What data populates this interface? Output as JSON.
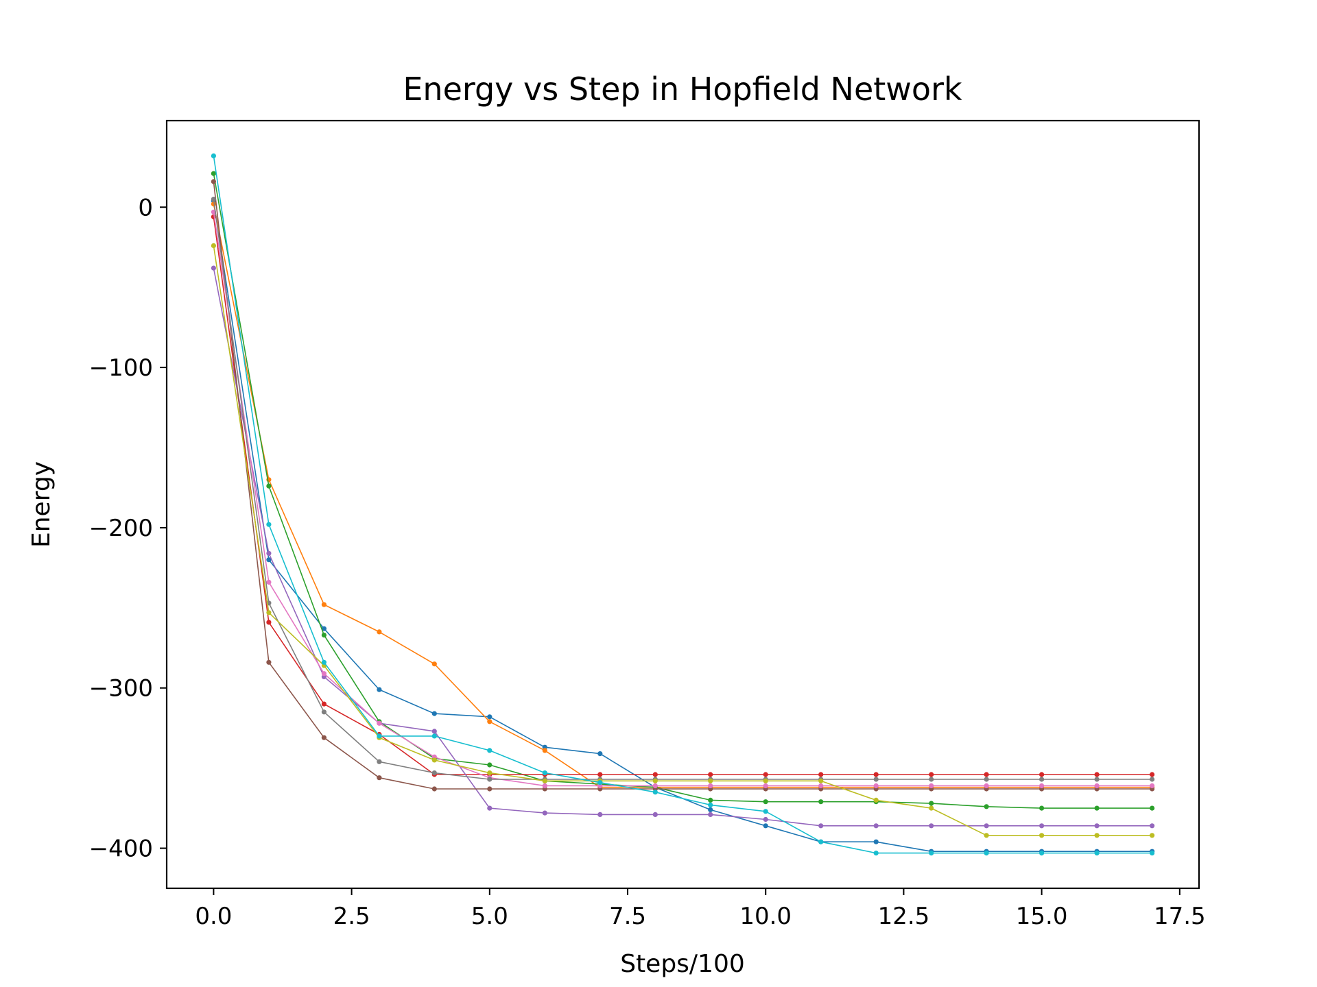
{
  "chart_data": {
    "type": "line",
    "title": "Energy vs Step in Hopfield Network",
    "xlabel": "Steps/100",
    "ylabel": "Energy",
    "xlim": [
      -0.85,
      17.85
    ],
    "ylim": [
      -425,
      54
    ],
    "xticks": [
      0.0,
      2.5,
      5.0,
      7.5,
      10.0,
      12.5,
      15.0,
      17.5
    ],
    "xtick_labels": [
      "0.0",
      "2.5",
      "5.0",
      "7.5",
      "10.0",
      "12.5",
      "15.0",
      "17.5"
    ],
    "yticks": [
      0,
      -100,
      -200,
      -300,
      -400
    ],
    "ytick_labels": [
      "0",
      "−100",
      "−200",
      "−300",
      "−400"
    ],
    "grid": false,
    "legend": false,
    "x": [
      0,
      1,
      2,
      3,
      4,
      5,
      6,
      7,
      8,
      9,
      10,
      11,
      12,
      13,
      14,
      15,
      16,
      17
    ],
    "series": [
      {
        "color": "#1f77b4",
        "values": [
          4,
          -220,
          -263,
          -301,
          -316,
          -318,
          -337,
          -341,
          -362,
          -376,
          -386,
          -396,
          -396,
          -402,
          -402,
          -402,
          -402,
          -402
        ]
      },
      {
        "color": "#ff7f0e",
        "values": [
          2,
          -170,
          -248,
          -265,
          -285,
          -321,
          -339,
          -362,
          -362,
          -362,
          -362,
          -362,
          -362,
          -362,
          -362,
          -362,
          -362,
          -362
        ]
      },
      {
        "color": "#2ca02c",
        "values": [
          21,
          -174,
          -267,
          -321,
          -344,
          -348,
          -358,
          -360,
          -362,
          -370,
          -371,
          -371,
          -371,
          -372,
          -374,
          -375,
          -375,
          -375
        ]
      },
      {
        "color": "#d62728",
        "values": [
          -6,
          -259,
          -310,
          -329,
          -354,
          -354,
          -354,
          -354,
          -354,
          -354,
          -354,
          -354,
          -354,
          -354,
          -354,
          -354,
          -354,
          -354
        ]
      },
      {
        "color": "#9467bd",
        "values": [
          -38,
          -216,
          -293,
          -322,
          -327,
          -375,
          -378,
          -379,
          -379,
          -379,
          -382,
          -386,
          -386,
          -386,
          -386,
          -386,
          -386,
          -386
        ]
      },
      {
        "color": "#8c564b",
        "values": [
          16,
          -284,
          -331,
          -356,
          -363,
          -363,
          -363,
          -363,
          -363,
          -363,
          -363,
          -363,
          -363,
          -363,
          -363,
          -363,
          -363,
          -363
        ]
      },
      {
        "color": "#e377c2",
        "values": [
          -3,
          -234,
          -291,
          -322,
          -343,
          -356,
          -361,
          -361,
          -361,
          -361,
          -361,
          -361,
          -361,
          -361,
          -361,
          -361,
          -361,
          -361
        ]
      },
      {
        "color": "#7f7f7f",
        "values": [
          5,
          -247,
          -315,
          -346,
          -353,
          -357,
          -357,
          -357,
          -357,
          -357,
          -357,
          -357,
          -357,
          -357,
          -357,
          -357,
          -357,
          -357
        ]
      },
      {
        "color": "#bcbd22",
        "values": [
          -24,
          -253,
          -286,
          -331,
          -345,
          -353,
          -358,
          -358,
          -358,
          -358,
          -358,
          -358,
          -370,
          -375,
          -392,
          -392,
          -392,
          -392
        ]
      },
      {
        "color": "#17becf",
        "values": [
          32,
          -198,
          -284,
          -330,
          -330,
          -339,
          -353,
          -359,
          -365,
          -373,
          -377,
          -396,
          -403,
          -403,
          -403,
          -403,
          -403,
          -403
        ]
      }
    ]
  }
}
